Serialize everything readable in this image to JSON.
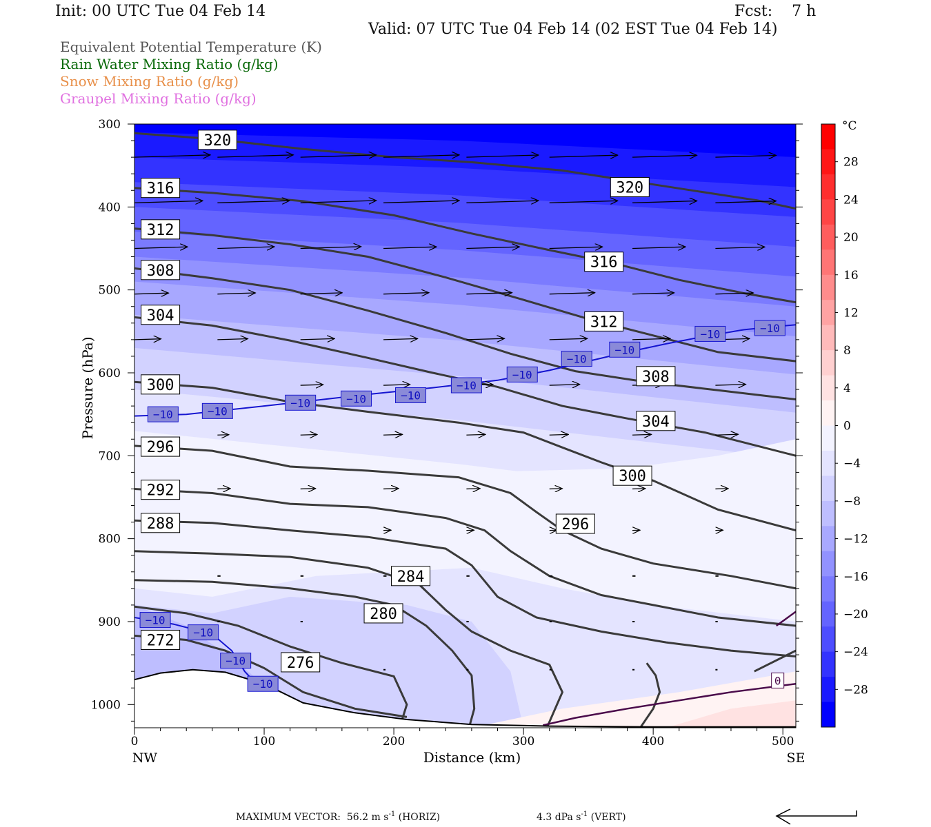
{
  "header": {
    "init": "Init: 00 UTC Tue 04 Feb 14",
    "fcst": "Fcst:    7 h",
    "valid": "Valid: 07 UTC Tue 04 Feb 14 (02 EST Tue 04 Feb 14)"
  },
  "legend": {
    "items": [
      {
        "label": "Equivalent Potential Temperature (K)",
        "color": "#555555"
      },
      {
        "label": "Rain Water Mixing Ratio (g/kg)",
        "color": "#0a6a0a"
      },
      {
        "label": "Snow Mixing Ratio (g/kg)",
        "color": "#e8904a"
      },
      {
        "label": "Graupel Mixing Ratio (g/kg)",
        "color": "#e070e0"
      }
    ]
  },
  "footer": {
    "max_vector_label": "MAXIMUM VECTOR:",
    "horiz_value": "56.2 m s",
    "horiz_exp": "-1",
    "horiz_suffix": "(HORIZ)",
    "vert_value": "4.3 dPa s",
    "vert_exp": "-1",
    "vert_suffix": "(VERT)"
  },
  "chart_data": {
    "type": "cross-section",
    "xlabel": "Distance (km)",
    "ylabel": "Pressure (hPa)",
    "xlim": [
      0,
      510
    ],
    "ylim": [
      1028,
      300
    ],
    "x_ticks": [
      0,
      100,
      200,
      300,
      400,
      500
    ],
    "y_ticks": [
      300,
      400,
      500,
      600,
      700,
      800,
      900,
      1000
    ],
    "x_endpoints": {
      "left": "NW",
      "right": "SE"
    },
    "colorbar": {
      "unit": "°C",
      "tick_labels": [
        "28",
        "24",
        "20",
        "16",
        "12",
        "8",
        "4",
        "0",
        "−4",
        "−8",
        "−12",
        "−16",
        "−20",
        "−24",
        "−28"
      ],
      "tick_values": [
        28,
        24,
        20,
        16,
        12,
        8,
        4,
        0,
        -4,
        -8,
        -12,
        -16,
        -20,
        -24,
        -28
      ],
      "range": [
        -32,
        32
      ],
      "colors_cold": [
        "#0000ff",
        "#1a1aff",
        "#3333ff",
        "#4d4dff",
        "#6464ff",
        "#7b7bff",
        "#9292ff",
        "#a8a8ff",
        "#bebeff",
        "#d2d2ff",
        "#e4e4ff",
        "#f3f3ff"
      ],
      "colors_warm": [
        "#fff3f3",
        "#ffe2e2",
        "#ffd0d0",
        "#ffbaba",
        "#ffa3a3",
        "#ff8c8c",
        "#ff7575",
        "#ff5d5d",
        "#ff4545",
        "#ff2e2e",
        "#ff1616",
        "#ff0000"
      ]
    },
    "theta_e_contours": [
      {
        "label": "320",
        "points": [
          [
            0,
            311
          ],
          [
            60,
            318
          ],
          [
            130,
            330
          ],
          [
            200,
            340
          ],
          [
            260,
            346
          ],
          [
            330,
            356
          ],
          [
            380,
            368
          ],
          [
            430,
            380
          ],
          [
            480,
            392
          ],
          [
            510,
            402
          ]
        ]
      },
      {
        "label": "316",
        "points": [
          [
            0,
            377
          ],
          [
            60,
            383
          ],
          [
            130,
            393
          ],
          [
            200,
            410
          ],
          [
            260,
            432
          ],
          [
            320,
            452
          ],
          [
            370,
            468
          ],
          [
            420,
            488
          ],
          [
            470,
            504
          ],
          [
            510,
            515
          ]
        ]
      },
      {
        "label": "312",
        "points": [
          [
            0,
            426
          ],
          [
            60,
            434
          ],
          [
            120,
            445
          ],
          [
            180,
            460
          ],
          [
            240,
            485
          ],
          [
            300,
            512
          ],
          [
            350,
            535
          ],
          [
            400,
            555
          ],
          [
            450,
            575
          ],
          [
            510,
            586
          ]
        ]
      },
      {
        "label": "308",
        "points": [
          [
            0,
            474
          ],
          [
            60,
            486
          ],
          [
            120,
            500
          ],
          [
            180,
            525
          ],
          [
            240,
            552
          ],
          [
            290,
            577
          ],
          [
            340,
            598
          ],
          [
            390,
            610
          ],
          [
            450,
            621
          ],
          [
            510,
            632
          ]
        ]
      },
      {
        "label": "304",
        "points": [
          [
            0,
            533
          ],
          [
            60,
            543
          ],
          [
            120,
            561
          ],
          [
            180,
            582
          ],
          [
            230,
            600
          ],
          [
            280,
            617
          ],
          [
            330,
            640
          ],
          [
            380,
            655
          ],
          [
            440,
            672
          ],
          [
            510,
            700
          ]
        ]
      },
      {
        "label": "300",
        "points": [
          [
            0,
            611
          ],
          [
            60,
            618
          ],
          [
            120,
            635
          ],
          [
            180,
            647
          ],
          [
            250,
            660
          ],
          [
            300,
            672
          ],
          [
            330,
            690
          ],
          [
            360,
            708
          ],
          [
            400,
            730
          ],
          [
            450,
            765
          ],
          [
            510,
            790
          ]
        ]
      },
      {
        "label": "296",
        "points": [
          [
            0,
            688
          ],
          [
            60,
            694
          ],
          [
            120,
            713
          ],
          [
            180,
            718
          ],
          [
            250,
            726
          ],
          [
            290,
            745
          ],
          [
            310,
            768
          ],
          [
            330,
            790
          ],
          [
            360,
            812
          ],
          [
            400,
            830
          ],
          [
            460,
            845
          ],
          [
            510,
            860
          ]
        ]
      },
      {
        "label": "292",
        "points": [
          [
            0,
            740
          ],
          [
            60,
            745
          ],
          [
            120,
            758
          ],
          [
            180,
            762
          ],
          [
            240,
            775
          ],
          [
            270,
            790
          ],
          [
            290,
            815
          ],
          [
            320,
            845
          ],
          [
            360,
            868
          ],
          [
            400,
            880
          ],
          [
            450,
            895
          ],
          [
            510,
            905
          ]
        ]
      },
      {
        "label": "288",
        "points": [
          [
            0,
            778
          ],
          [
            60,
            781
          ],
          [
            120,
            790
          ],
          [
            180,
            798
          ],
          [
            240,
            812
          ],
          [
            260,
            832
          ],
          [
            280,
            870
          ],
          [
            310,
            895
          ],
          [
            360,
            912
          ],
          [
            410,
            925
          ],
          [
            460,
            935
          ],
          [
            510,
            942
          ]
        ]
      },
      {
        "label": "284",
        "points": [
          [
            0,
            815
          ],
          [
            60,
            818
          ],
          [
            120,
            822
          ],
          [
            180,
            835
          ],
          [
            220,
            856
          ],
          [
            240,
            886
          ],
          [
            260,
            912
          ],
          [
            290,
            935
          ],
          [
            320,
            952
          ],
          [
            330,
            985
          ],
          [
            318,
            1028
          ]
        ]
      },
      {
        "label": "280",
        "points": [
          [
            0,
            850
          ],
          [
            60,
            852
          ],
          [
            120,
            860
          ],
          [
            170,
            870
          ],
          [
            200,
            880
          ],
          [
            225,
            905
          ],
          [
            245,
            935
          ],
          [
            260,
            965
          ],
          [
            262,
            1005
          ],
          [
            258,
            1028
          ]
        ]
      },
      {
        "label": "276",
        "points": [
          [
            0,
            882
          ],
          [
            40,
            890
          ],
          [
            80,
            905
          ],
          [
            120,
            930
          ],
          [
            160,
            950
          ],
          [
            200,
            966
          ],
          [
            210,
            1000
          ],
          [
            205,
            1025
          ]
        ]
      },
      {
        "label": "272",
        "points": [
          [
            0,
            917
          ],
          [
            40,
            922
          ],
          [
            70,
            935
          ],
          [
            100,
            956
          ],
          [
            130,
            985
          ],
          [
            170,
            1005
          ],
          [
            210,
            1015
          ]
        ]
      },
      {
        "label": "",
        "points": [
          [
            390,
            1028
          ],
          [
            400,
            1005
          ],
          [
            405,
            985
          ],
          [
            402,
            965
          ],
          [
            395,
            950
          ]
        ]
      },
      {
        "label": "",
        "points": [
          [
            478,
            960
          ],
          [
            510,
            935
          ]
        ]
      }
    ],
    "theta_e_label_positions": [
      {
        "text": "320",
        "x": 64,
        "p": 319
      },
      {
        "text": "316",
        "x": 20,
        "p": 377
      },
      {
        "text": "312",
        "x": 20,
        "p": 427
      },
      {
        "text": "308",
        "x": 20,
        "p": 476
      },
      {
        "text": "304",
        "x": 20,
        "p": 530
      },
      {
        "text": "300",
        "x": 20,
        "p": 614
      },
      {
        "text": "296",
        "x": 20,
        "p": 689
      },
      {
        "text": "292",
        "x": 20,
        "p": 741
      },
      {
        "text": "288",
        "x": 20,
        "p": 781
      },
      {
        "text": "284",
        "x": 213,
        "p": 845
      },
      {
        "text": "280",
        "x": 192,
        "p": 890
      },
      {
        "text": "276",
        "x": 128,
        "p": 949
      },
      {
        "text": "272",
        "x": 20,
        "p": 922
      },
      {
        "text": "320",
        "x": 382,
        "p": 376
      },
      {
        "text": "316",
        "x": 362,
        "p": 466
      },
      {
        "text": "312",
        "x": 362,
        "p": 538
      },
      {
        "text": "308",
        "x": 402,
        "p": 604
      },
      {
        "text": "304",
        "x": 402,
        "p": 658
      },
      {
        "text": "300",
        "x": 384,
        "p": 724
      },
      {
        "text": "296",
        "x": 340,
        "p": 782
      }
    ],
    "isotherm_minus10": {
      "upper": [
        [
          0,
          652
        ],
        [
          40,
          650
        ],
        [
          100,
          640
        ],
        [
          140,
          633
        ],
        [
          180,
          626
        ],
        [
          230,
          618
        ],
        [
          280,
          609
        ],
        [
          320,
          597
        ],
        [
          350,
          586
        ],
        [
          380,
          575
        ],
        [
          410,
          565
        ],
        [
          440,
          556
        ],
        [
          470,
          548
        ],
        [
          510,
          542
        ]
      ],
      "lower": [
        [
          0,
          895
        ],
        [
          30,
          903
        ],
        [
          60,
          915
        ],
        [
          75,
          935
        ],
        [
          85,
          960
        ],
        [
          100,
          985
        ],
        [
          110,
          992
        ]
      ],
      "labels": [
        {
          "text": "−10",
          "x": 22,
          "p": 650
        },
        {
          "text": "−10",
          "x": 64,
          "p": 646
        },
        {
          "text": "−10",
          "x": 128,
          "p": 636
        },
        {
          "text": "−10",
          "x": 171,
          "p": 631
        },
        {
          "text": "−10",
          "x": 213,
          "p": 627
        },
        {
          "text": "−10",
          "x": 256,
          "p": 615
        },
        {
          "text": "−10",
          "x": 299,
          "p": 602
        },
        {
          "text": "−10",
          "x": 341,
          "p": 583
        },
        {
          "text": "−10",
          "x": 378,
          "p": 572
        },
        {
          "text": "−10",
          "x": 444,
          "p": 553
        },
        {
          "text": "−10",
          "x": 490,
          "p": 546
        },
        {
          "text": "−10",
          "x": 16,
          "p": 898
        },
        {
          "text": "−10",
          "x": 53,
          "p": 913
        },
        {
          "text": "−10",
          "x": 78,
          "p": 947
        },
        {
          "text": "−10",
          "x": 99,
          "p": 975
        }
      ]
    },
    "isotherm_zero": {
      "points": [
        [
          315,
          1025
        ],
        [
          340,
          1016
        ],
        [
          380,
          1005
        ],
        [
          420,
          995
        ],
        [
          460,
          985
        ],
        [
          510,
          975
        ]
      ],
      "upper_right": [
        [
          495,
          905
        ],
        [
          510,
          888
        ]
      ],
      "label": {
        "text": "0",
        "x": 496,
        "p": 971
      }
    },
    "terrain": [
      [
        0,
        970
      ],
      [
        20,
        962
      ],
      [
        45,
        958
      ],
      [
        70,
        961
      ],
      [
        100,
        975
      ],
      [
        130,
        998
      ],
      [
        170,
        1010
      ],
      [
        210,
        1018
      ],
      [
        260,
        1024
      ],
      [
        320,
        1026
      ],
      [
        400,
        1027
      ],
      [
        510,
        1027
      ]
    ],
    "wind_vectors": {
      "x": [
        0,
        64,
        128,
        192,
        256,
        320,
        384,
        448,
        510
      ],
      "rows": [
        {
          "p": 340,
          "u": [
            1.0,
            1.0,
            1.0,
            1.0,
            0.95,
            0.9,
            0.85,
            0.8,
            0.8
          ]
        },
        {
          "p": 395,
          "u": [
            0.9,
            0.95,
            1.0,
            1.0,
            0.95,
            0.9,
            0.85,
            0.8,
            0.75
          ]
        },
        {
          "p": 450,
          "u": [
            0.7,
            0.75,
            0.8,
            0.7,
            0.7,
            0.7,
            0.7,
            0.65,
            0.65
          ]
        },
        {
          "p": 505,
          "u": [
            0.45,
            0.5,
            0.55,
            0.6,
            0.6,
            0.6,
            0.55,
            0.5,
            0.5
          ]
        },
        {
          "p": 560,
          "u": [
            0.35,
            0.4,
            0.45,
            0.45,
            0.5,
            0.5,
            0.5,
            0.45,
            0.45
          ]
        },
        {
          "p": 615,
          "u": [
            0.0,
            0.0,
            0.3,
            0.35,
            0.35,
            0.4,
            0.4,
            0.4,
            0.4
          ]
        },
        {
          "p": 675,
          "u": [
            0.0,
            0.15,
            0.22,
            0.25,
            0.25,
            0.25,
            0.25,
            0.3,
            0.3
          ]
        },
        {
          "p": 740,
          "u": [
            0.0,
            0.17,
            0.2,
            0.2,
            0.18,
            0.17,
            0.17,
            0.17,
            0.17
          ]
        },
        {
          "p": 790,
          "u": [
            0.0,
            0.0,
            0.0,
            0.1,
            0.1,
            0.1,
            0.1,
            0.1,
            0.1
          ]
        },
        {
          "p": 845,
          "u": [
            0.0,
            0.04,
            0.04,
            0.04,
            0.04,
            0.04,
            0.04,
            0.04,
            0.04
          ]
        },
        {
          "p": 900,
          "u": [
            0.0,
            0.03,
            0.03,
            0.03,
            0.03,
            0.03,
            0.03,
            0.03,
            0.03
          ]
        },
        {
          "p": 958,
          "u": [
            0.0,
            0.0,
            0.02,
            0.02,
            0.02,
            0.02,
            0.02,
            0.02,
            0.02
          ]
        }
      ]
    },
    "reference_vector": {
      "direction": "left"
    }
  }
}
